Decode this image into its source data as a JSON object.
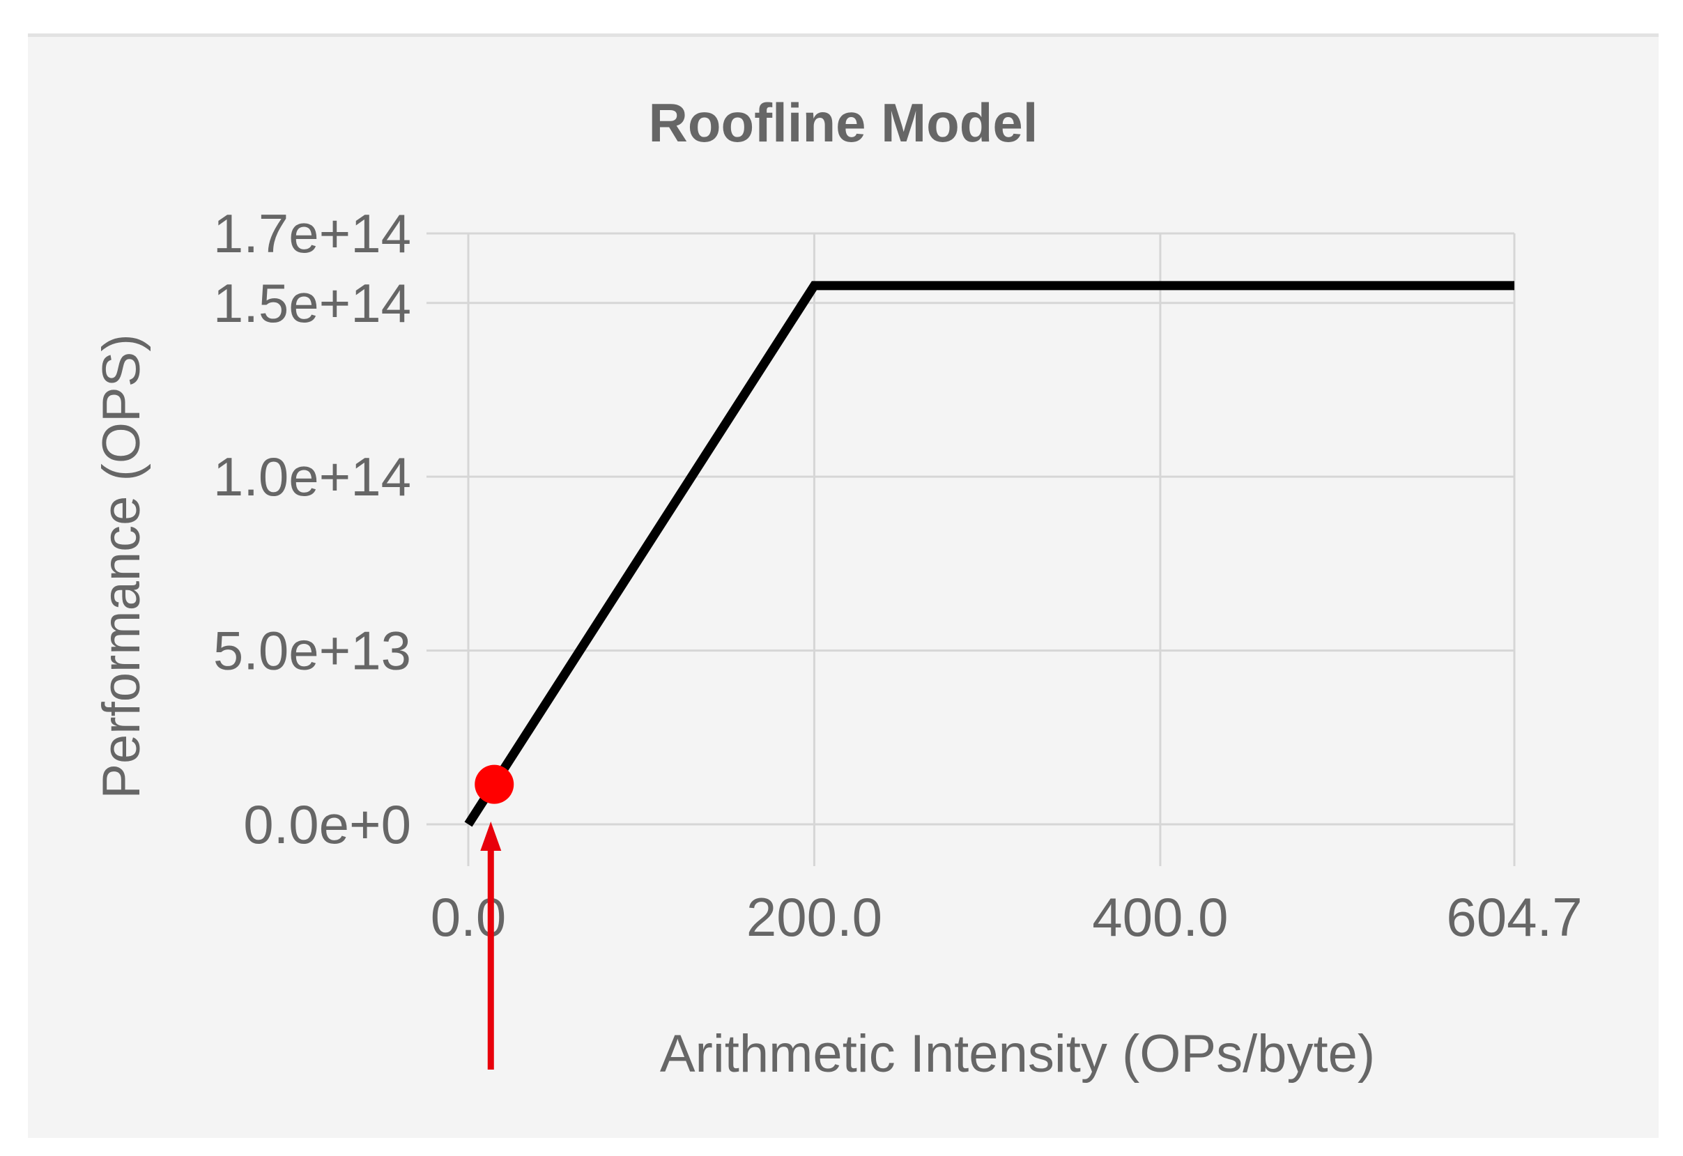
{
  "chart_data": {
    "type": "line",
    "title": "Roofline Model",
    "xlabel": "Arithmetic Intensity (OPs/byte)",
    "ylabel": "Performance (OPS)",
    "xlim": [
      0,
      604.7
    ],
    "ylim": [
      0,
      170000000000000.0
    ],
    "x_ticks": [
      0,
      200,
      400,
      604.7
    ],
    "x_tick_labels": [
      "0.0",
      "200.0",
      "400.0",
      "604.7"
    ],
    "y_ticks": [
      0,
      50000000000000.0,
      100000000000000.0,
      150000000000000.0,
      170000000000000.0
    ],
    "y_tick_labels": [
      "0.0e+0",
      "5.0e+13",
      "1.0e+14",
      "1.5e+14",
      "1.7e+14"
    ],
    "grid": true,
    "series": [
      {
        "x": [
          0,
          200,
          604.7
        ],
        "y": [
          0,
          155000000000000.0,
          155000000000000.0
        ],
        "color": "#000000"
      }
    ],
    "points": [
      {
        "x": 15,
        "y": 11500000000000.0,
        "color": "#ff0000"
      }
    ],
    "annotations": [
      {
        "type": "arrow",
        "x": 13,
        "color": "#e8000b",
        "direction": "up"
      }
    ]
  }
}
